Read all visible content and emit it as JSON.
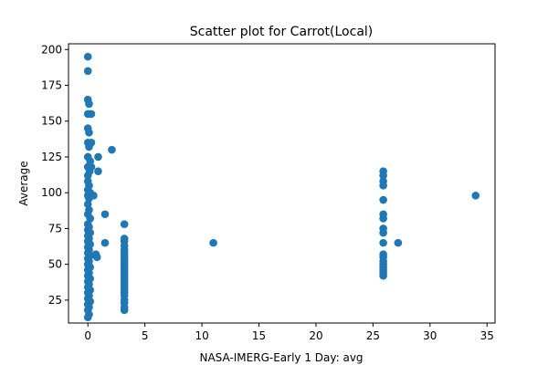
{
  "chart_data": {
    "type": "scatter",
    "title": "Scatter plot for Carrot(Local)",
    "xlabel": "NASA-IMERG-Early 1 Day: avg",
    "ylabel": "Average",
    "xlim": [
      -1.7,
      35.7
    ],
    "ylim": [
      9,
      204
    ],
    "xticks": [
      0,
      5,
      10,
      15,
      20,
      25,
      30,
      35
    ],
    "yticks": [
      25,
      50,
      75,
      100,
      125,
      150,
      175,
      200
    ],
    "grid": false,
    "marker_color": "#1f77b4",
    "points": [
      [
        0,
        195
      ],
      [
        0,
        185
      ],
      [
        0,
        165
      ],
      [
        0.1,
        162
      ],
      [
        0,
        155
      ],
      [
        0.15,
        155
      ],
      [
        0.3,
        155
      ],
      [
        0,
        145
      ],
      [
        0.1,
        142
      ],
      [
        0,
        135
      ],
      [
        0.3,
        135
      ],
      [
        0.1,
        132
      ],
      [
        0,
        125
      ],
      [
        0.2,
        122
      ],
      [
        0,
        118
      ],
      [
        0.15,
        115
      ],
      [
        0,
        112
      ],
      [
        0.3,
        118
      ],
      [
        0,
        108
      ],
      [
        0.1,
        105
      ],
      [
        0,
        102
      ],
      [
        0.2,
        100
      ],
      [
        0,
        98
      ],
      [
        0.1,
        96
      ],
      [
        0,
        92
      ],
      [
        0.1,
        88
      ],
      [
        0,
        85
      ],
      [
        0.2,
        82
      ],
      [
        0,
        78
      ],
      [
        0.1,
        76
      ],
      [
        0,
        74
      ],
      [
        0.2,
        72
      ],
      [
        0,
        70
      ],
      [
        0.1,
        68
      ],
      [
        0,
        66
      ],
      [
        0.2,
        64
      ],
      [
        0,
        62
      ],
      [
        0.1,
        60
      ],
      [
        0,
        58
      ],
      [
        0.2,
        56
      ],
      [
        0,
        54
      ],
      [
        0.1,
        52
      ],
      [
        0,
        50
      ],
      [
        0.2,
        48
      ],
      [
        0,
        46
      ],
      [
        0.1,
        44
      ],
      [
        0,
        42
      ],
      [
        0.2,
        40
      ],
      [
        0,
        38
      ],
      [
        0.1,
        36
      ],
      [
        0,
        34
      ],
      [
        0.2,
        32
      ],
      [
        0,
        30
      ],
      [
        0.1,
        28
      ],
      [
        0,
        26
      ],
      [
        0.2,
        24
      ],
      [
        0,
        22
      ],
      [
        0.1,
        20
      ],
      [
        0,
        18
      ],
      [
        0.1,
        15
      ],
      [
        0,
        13
      ],
      [
        0.5,
        98
      ],
      [
        0.7,
        57
      ],
      [
        0.8,
        55
      ],
      [
        0.9,
        115
      ],
      [
        0.9,
        125
      ],
      [
        1.5,
        85
      ],
      [
        1.5,
        65
      ],
      [
        2.1,
        130
      ],
      [
        3.2,
        78
      ],
      [
        3.2,
        68
      ],
      [
        3.2,
        66
      ],
      [
        3.2,
        63
      ],
      [
        3.2,
        60
      ],
      [
        3.2,
        58
      ],
      [
        3.2,
        56
      ],
      [
        3.2,
        54
      ],
      [
        3.2,
        52
      ],
      [
        3.2,
        50
      ],
      [
        3.2,
        48
      ],
      [
        3.2,
        46
      ],
      [
        3.2,
        44
      ],
      [
        3.2,
        42
      ],
      [
        3.2,
        40
      ],
      [
        3.2,
        38
      ],
      [
        3.2,
        36
      ],
      [
        3.2,
        34
      ],
      [
        3.2,
        32
      ],
      [
        3.2,
        30
      ],
      [
        3.2,
        28
      ],
      [
        3.2,
        25
      ],
      [
        3.2,
        23
      ],
      [
        3.2,
        20
      ],
      [
        3.2,
        18
      ],
      [
        11,
        65
      ],
      [
        25.9,
        115
      ],
      [
        25.9,
        112
      ],
      [
        25.9,
        108
      ],
      [
        25.9,
        105
      ],
      [
        25.9,
        95
      ],
      [
        25.9,
        85
      ],
      [
        25.9,
        82
      ],
      [
        25.9,
        75
      ],
      [
        25.9,
        72
      ],
      [
        25.9,
        65
      ],
      [
        25.9,
        57
      ],
      [
        25.9,
        55
      ],
      [
        25.9,
        52
      ],
      [
        25.9,
        50
      ],
      [
        25.9,
        48
      ],
      [
        25.9,
        46
      ],
      [
        25.9,
        44
      ],
      [
        25.9,
        42
      ],
      [
        27.2,
        65
      ],
      [
        34,
        98
      ]
    ]
  }
}
